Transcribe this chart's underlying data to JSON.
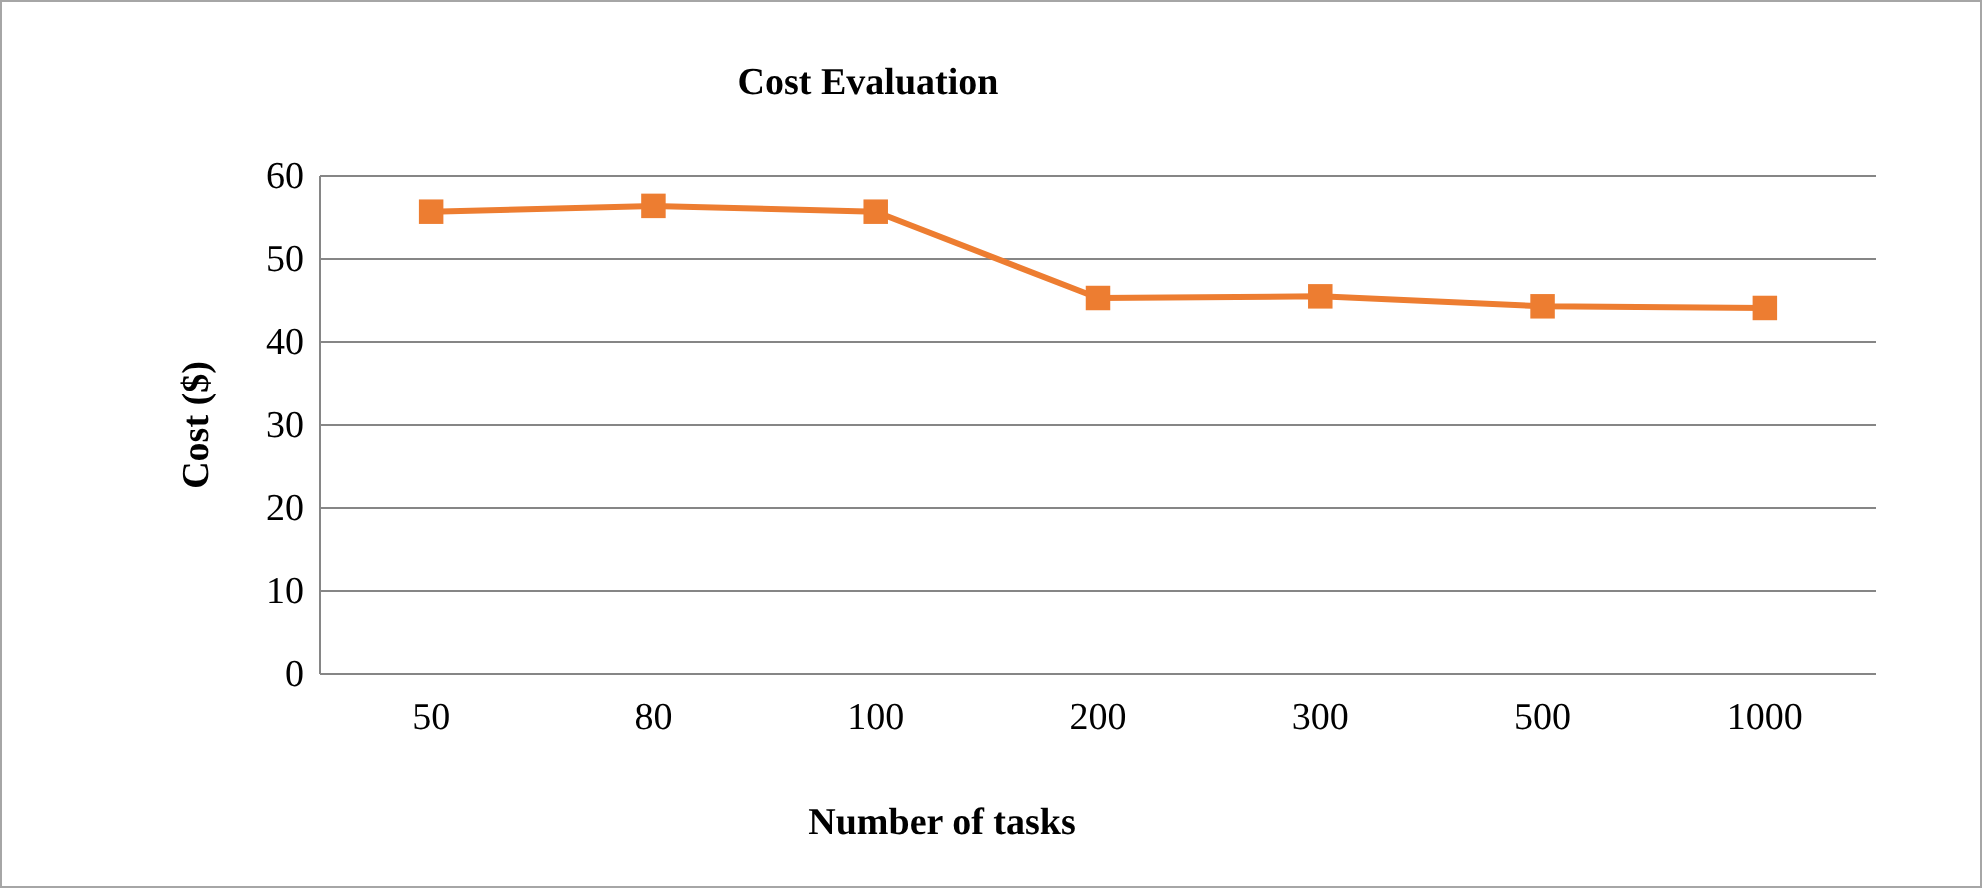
{
  "chart_data": {
    "type": "line",
    "title": "Cost Evaluation",
    "xlabel": "Number of tasks",
    "ylabel": "Cost ($)",
    "categories": [
      "50",
      "80",
      "100",
      "200",
      "300",
      "500",
      "1000"
    ],
    "series": [
      {
        "color": "#ed7d31",
        "values": [
          55.7,
          56.4,
          55.7,
          45.3,
          45.5,
          44.3,
          44.1
        ]
      }
    ],
    "ylim": [
      0,
      60
    ],
    "yticks": [
      0,
      10,
      20,
      30,
      40,
      50,
      60
    ],
    "grid": "y",
    "marker": "square",
    "line_style": "solid"
  }
}
